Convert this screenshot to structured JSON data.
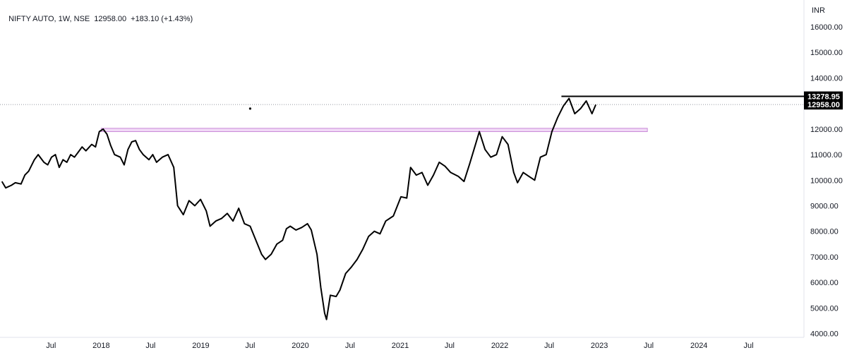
{
  "header": {
    "symbol": "NIFTY AUTO, 1W, NSE",
    "price": "12958.00",
    "change": "+183.10 (+1.43%)"
  },
  "chart_data": {
    "type": "line",
    "title": "NIFTY AUTO, 1W, NSE",
    "currency": "INR",
    "series": [
      {
        "values": [
          [
            "2017-01-02",
            9950
          ],
          [
            "2017-01-16",
            9700
          ],
          [
            "2017-02-06",
            9800
          ],
          [
            "2017-02-20",
            9900
          ],
          [
            "2017-03-13",
            9850
          ],
          [
            "2017-03-27",
            10200
          ],
          [
            "2017-04-10",
            10350
          ],
          [
            "2017-05-01",
            10800
          ],
          [
            "2017-05-15",
            11000
          ],
          [
            "2017-06-05",
            10700
          ],
          [
            "2017-06-19",
            10600
          ],
          [
            "2017-07-03",
            10900
          ],
          [
            "2017-07-17",
            11000
          ],
          [
            "2017-07-31",
            10500
          ],
          [
            "2017-08-14",
            10800
          ],
          [
            "2017-08-28",
            10700
          ],
          [
            "2017-09-11",
            11000
          ],
          [
            "2017-09-25",
            10900
          ],
          [
            "2017-10-09",
            11100
          ],
          [
            "2017-10-23",
            11300
          ],
          [
            "2017-11-06",
            11150
          ],
          [
            "2017-11-27",
            11400
          ],
          [
            "2017-12-11",
            11300
          ],
          [
            "2017-12-25",
            11900
          ],
          [
            "2018-01-08",
            12000
          ],
          [
            "2018-01-22",
            11800
          ],
          [
            "2018-02-05",
            11350
          ],
          [
            "2018-02-19",
            11000
          ],
          [
            "2018-03-12",
            10900
          ],
          [
            "2018-03-26",
            10600
          ],
          [
            "2018-04-09",
            11200
          ],
          [
            "2018-04-23",
            11500
          ],
          [
            "2018-05-07",
            11550
          ],
          [
            "2018-05-21",
            11200
          ],
          [
            "2018-06-04",
            11000
          ],
          [
            "2018-06-25",
            10800
          ],
          [
            "2018-07-09",
            11000
          ],
          [
            "2018-07-23",
            10700
          ],
          [
            "2018-08-13",
            10900
          ],
          [
            "2018-09-03",
            11000
          ],
          [
            "2018-09-24",
            10500
          ],
          [
            "2018-10-08",
            9000
          ],
          [
            "2018-10-29",
            8650
          ],
          [
            "2018-11-19",
            9200
          ],
          [
            "2018-12-10",
            9000
          ],
          [
            "2018-12-31",
            9250
          ],
          [
            "2019-01-21",
            8800
          ],
          [
            "2019-02-04",
            8200
          ],
          [
            "2019-02-25",
            8400
          ],
          [
            "2019-03-18",
            8500
          ],
          [
            "2019-04-08",
            8700
          ],
          [
            "2019-04-29",
            8400
          ],
          [
            "2019-05-20",
            8900
          ],
          [
            "2019-06-10",
            8300
          ],
          [
            "2019-07-01",
            8200
          ],
          [
            "2019-07-22",
            7650
          ],
          [
            "2019-08-12",
            7100
          ],
          [
            "2019-08-26",
            6900
          ],
          [
            "2019-09-16",
            7100
          ],
          [
            "2019-10-07",
            7500
          ],
          [
            "2019-10-28",
            7650
          ],
          [
            "2019-11-11",
            8100
          ],
          [
            "2019-11-25",
            8200
          ],
          [
            "2019-12-16",
            8050
          ],
          [
            "2020-01-06",
            8150
          ],
          [
            "2020-01-27",
            8300
          ],
          [
            "2020-02-10",
            8050
          ],
          [
            "2020-03-02",
            7100
          ],
          [
            "2020-03-16",
            5800
          ],
          [
            "2020-03-30",
            4800
          ],
          [
            "2020-04-06",
            4550
          ],
          [
            "2020-04-20",
            5500
          ],
          [
            "2020-05-11",
            5450
          ],
          [
            "2020-05-25",
            5700
          ],
          [
            "2020-06-15",
            6350
          ],
          [
            "2020-07-06",
            6600
          ],
          [
            "2020-07-27",
            6900
          ],
          [
            "2020-08-17",
            7300
          ],
          [
            "2020-09-07",
            7800
          ],
          [
            "2020-09-28",
            8000
          ],
          [
            "2020-10-19",
            7900
          ],
          [
            "2020-11-09",
            8400
          ],
          [
            "2020-12-07",
            8600
          ],
          [
            "2021-01-04",
            9350
          ],
          [
            "2021-01-25",
            9300
          ],
          [
            "2021-02-08",
            10500
          ],
          [
            "2021-03-01",
            10200
          ],
          [
            "2021-03-22",
            10300
          ],
          [
            "2021-04-12",
            9800
          ],
          [
            "2021-05-03",
            10200
          ],
          [
            "2021-05-24",
            10700
          ],
          [
            "2021-06-14",
            10550
          ],
          [
            "2021-07-05",
            10300
          ],
          [
            "2021-08-02",
            10150
          ],
          [
            "2021-08-23",
            9950
          ],
          [
            "2021-09-13",
            10650
          ],
          [
            "2021-10-04",
            11400
          ],
          [
            "2021-10-18",
            11900
          ],
          [
            "2021-11-08",
            11200
          ],
          [
            "2021-11-29",
            10900
          ],
          [
            "2021-12-20",
            11000
          ],
          [
            "2022-01-10",
            11700
          ],
          [
            "2022-01-31",
            11400
          ],
          [
            "2022-02-21",
            10300
          ],
          [
            "2022-03-07",
            9900
          ],
          [
            "2022-03-28",
            10300
          ],
          [
            "2022-04-18",
            10150
          ],
          [
            "2022-05-09",
            10000
          ],
          [
            "2022-05-30",
            10900
          ],
          [
            "2022-06-20",
            11000
          ],
          [
            "2022-07-11",
            11900
          ],
          [
            "2022-08-01",
            12450
          ],
          [
            "2022-08-22",
            12900
          ],
          [
            "2022-09-12",
            13200
          ],
          [
            "2022-10-03",
            12600
          ],
          [
            "2022-10-24",
            12800
          ],
          [
            "2022-11-14",
            13100
          ],
          [
            "2022-12-05",
            12600
          ],
          [
            "2022-12-19",
            12958
          ]
        ]
      }
    ],
    "yaxis": {
      "ticks": [
        "4000.00",
        "5000.00",
        "6000.00",
        "7000.00",
        "8000.00",
        "9000.00",
        "10000.00",
        "11000.00",
        "12000.00",
        "13000.00",
        "14000.00",
        "15000.00",
        "16000.00"
      ],
      "range": [
        3850,
        17050
      ],
      "currency_label": "INR"
    },
    "xaxis": {
      "range": [
        "2016-12-26",
        "2025-01-20"
      ],
      "tick_labels": [
        [
          "2017-07-01",
          "Jul"
        ],
        [
          "2018-01-01",
          "2018"
        ],
        [
          "2018-07-01",
          "Jul"
        ],
        [
          "2019-01-01",
          "2019"
        ],
        [
          "2019-07-01",
          "Jul"
        ],
        [
          "2020-01-01",
          "2020"
        ],
        [
          "2020-07-01",
          "Jul"
        ],
        [
          "2021-01-01",
          "2021"
        ],
        [
          "2021-07-01",
          "Jul"
        ],
        [
          "2022-01-01",
          "2022"
        ],
        [
          "2022-07-01",
          "Jul"
        ],
        [
          "2023-01-01",
          "2023"
        ],
        [
          "2023-07-01",
          "Jul"
        ],
        [
          "2024-01-01",
          "2024"
        ],
        [
          "2024-07-01",
          "Jul"
        ]
      ]
    },
    "annotations": {
      "resistance_line": {
        "from": "2022-08-15",
        "to": "2025-01-20",
        "value": 13278.95,
        "label": "13278.95",
        "color": "#000000"
      },
      "last_price": {
        "value": 12958,
        "label": "12958.00",
        "color": "#000000"
      },
      "support_zone": {
        "from": "2018-01-01",
        "to": "2023-06-26",
        "low": 11900,
        "high": 12030,
        "color": "#c98bd8"
      },
      "dot_marker": {
        "date": "2019-07-01",
        "value": 12800
      }
    },
    "grid": false,
    "colors": {
      "line": "#000000",
      "text": "#131722",
      "axis": "#e0e3eb"
    }
  }
}
